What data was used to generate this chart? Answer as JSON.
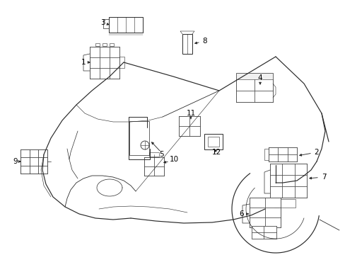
{
  "bg_color": "#ffffff",
  "line_color": "#2a2a2a",
  "fig_width": 4.89,
  "fig_height": 3.6,
  "dpi": 100,
  "car": {
    "color": "#2a2a2a",
    "lw": 0.85
  },
  "label_fs": 7.5,
  "label_color": "#000000",
  "parts_lw": 0.7,
  "parts_color": "#2a2a2a"
}
